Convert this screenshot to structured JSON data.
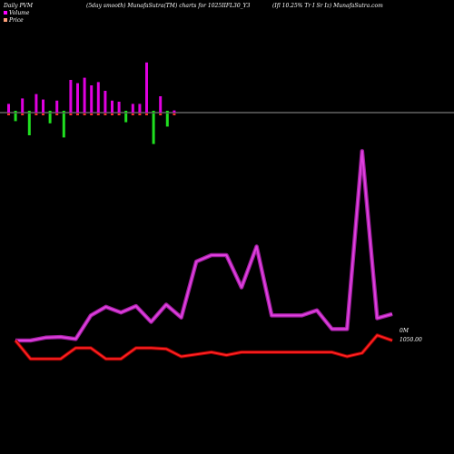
{
  "header": {
    "left": "Daily PVM",
    "center": "(5day smooth) MunafaSutra(TM) charts for 1025IIFL30_Y3",
    "right": "(Ifl 10.25% Tr I Sr Iz) MunafaSutra.com"
  },
  "legend": [
    {
      "label": "Volume",
      "color": "#ff00ff"
    },
    {
      "label": "Price",
      "color": "#ffa07a"
    }
  ],
  "chart_data": {
    "type": "line",
    "title": "",
    "x_count": 26,
    "y_labels": {
      "volume": "0M",
      "price": "1050.00"
    },
    "series": [
      {
        "name": "Volume",
        "color": "#e040e0",
        "values": [
          0.0,
          0.0,
          0.4,
          0.5,
          0.2,
          3.5,
          4.7,
          3.9,
          4.8,
          2.6,
          5.0,
          3.2,
          11.0,
          11.9,
          11.9,
          7.4,
          13.1,
          3.5,
          3.5,
          3.5,
          4.2,
          1.6,
          1.6,
          26.4,
          3.1,
          3.7
        ]
      },
      {
        "name": "Price",
        "color": "#ff2020",
        "values": [
          1050.0,
          1040.6,
          1040.6,
          1040.6,
          1046.2,
          1046.2,
          1040.6,
          1040.6,
          1046.2,
          1046.2,
          1045.7,
          1041.8,
          1042.9,
          1044.0,
          1042.5,
          1044.0,
          1044.0,
          1044.0,
          1044.0,
          1044.0,
          1044.0,
          1044.0,
          1041.8,
          1043.6,
          1052.7,
          1050.0
        ]
      }
    ],
    "volume_bars": {
      "values": [
        0.8,
        0.7,
        1.3,
        2.0,
        1.7,
        1.2,
        0.9,
        1.1,
        2.2,
        3.0,
        2.7,
        3.2,
        2.5,
        2.8,
        2.0,
        1.1,
        1.0,
        0.8,
        0.8,
        0.8,
        4.6,
        2.8,
        1.5,
        1.2,
        0.2
      ],
      "up": [
        true,
        false,
        true,
        false,
        true,
        true,
        false,
        true,
        false,
        true,
        true,
        true,
        true,
        true,
        true,
        true,
        true,
        false,
        true,
        true,
        true,
        false,
        true,
        false,
        true
      ]
    }
  }
}
